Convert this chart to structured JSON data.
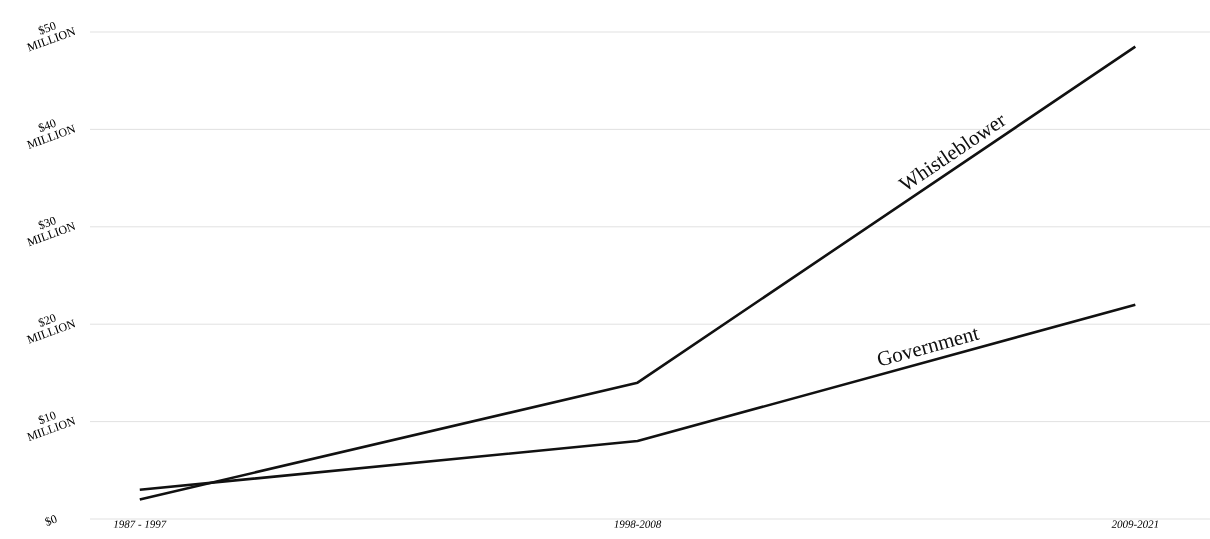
{
  "chart_data": {
    "type": "line",
    "categories": [
      "1987 - 1997",
      "1998-2008",
      "2009-2021"
    ],
    "series": [
      {
        "name": "Whistleblower",
        "color": "#111111",
        "values": [
          2,
          14,
          48.5
        ]
      },
      {
        "name": "Government",
        "color": "#111111",
        "values": [
          3,
          8,
          22
        ]
      }
    ],
    "ylim": [
      0,
      50
    ],
    "yticks": [
      {
        "value": 0,
        "label": "$0"
      },
      {
        "value": 10,
        "label": "$10 MILLION"
      },
      {
        "value": 20,
        "label": "$20 MILLION"
      },
      {
        "value": 30,
        "label": "$30 MILLION"
      },
      {
        "value": 40,
        "label": "$40 MILLION"
      },
      {
        "value": 50,
        "label": "$50 MILLION"
      }
    ],
    "grid": "y",
    "marker": "none",
    "line_style": "solid"
  }
}
